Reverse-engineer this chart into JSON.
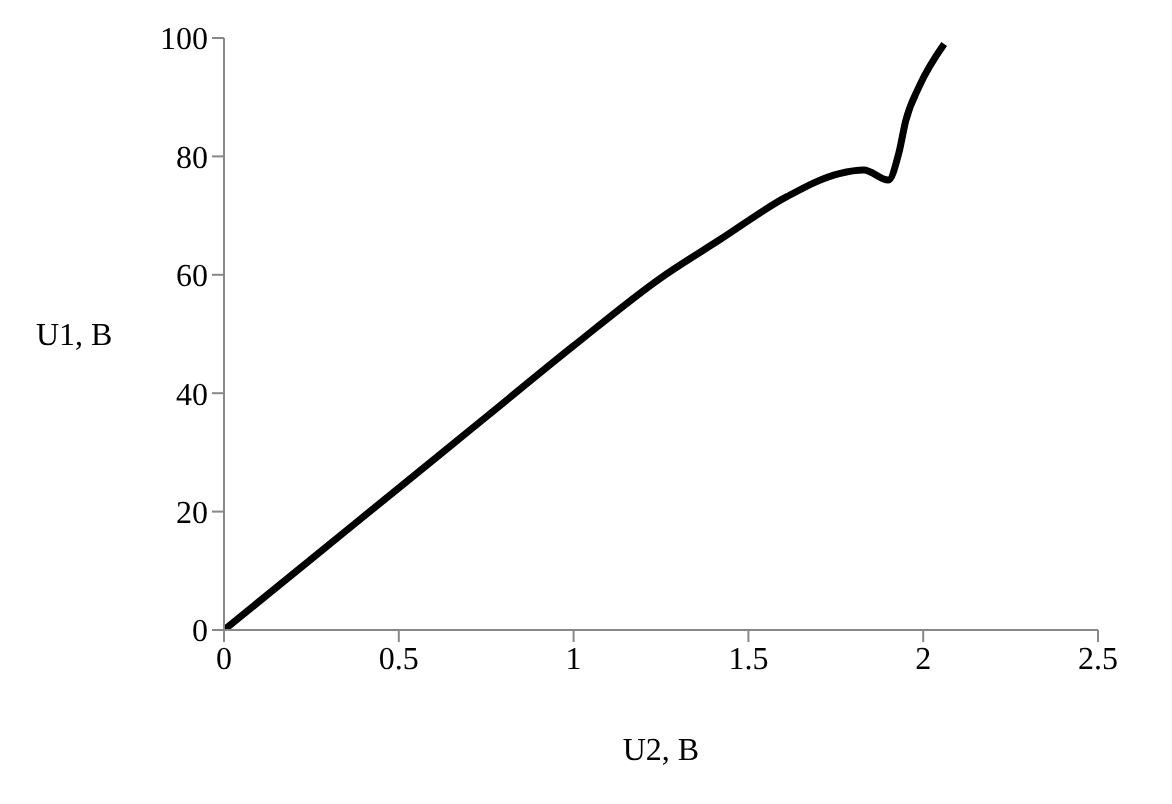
{
  "chart_data": {
    "type": "line",
    "xlabel": "U2, B",
    "ylabel": "U1, B",
    "xlim": [
      0,
      2.5
    ],
    "xticks": [
      0,
      0.5,
      1,
      1.5,
      2,
      2.5
    ],
    "ylim": [
      0,
      100
    ],
    "yticks": [
      0,
      20,
      40,
      60,
      80,
      100
    ],
    "grid": false,
    "legend": false,
    "marker": "none",
    "line_style": "solid",
    "series": [
      {
        "color": "#000000",
        "x": [
          0,
          0.25,
          0.5,
          0.75,
          1.0,
          1.25,
          1.42,
          1.61,
          1.76,
          1.83,
          1.9,
          1.93,
          1.95,
          1.99,
          2.06
        ],
        "values": [
          0,
          12,
          24,
          36,
          48,
          59.5,
          66,
          73.2,
          77.1,
          77.7,
          76,
          80.5,
          86,
          92,
          99
        ]
      }
    ]
  }
}
